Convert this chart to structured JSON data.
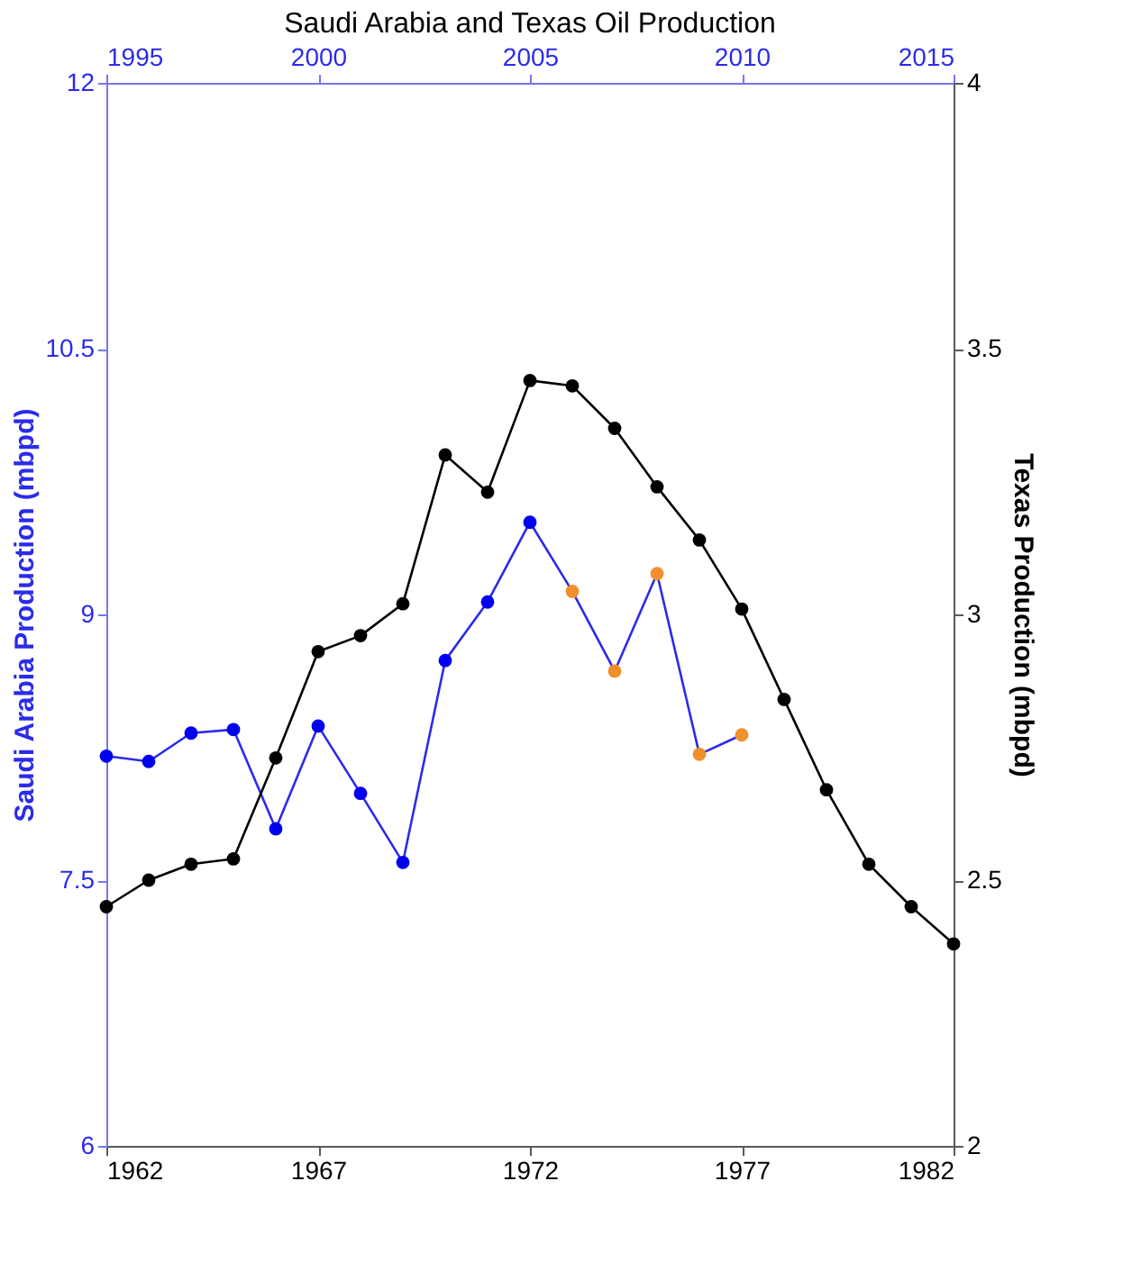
{
  "chart_data": {
    "type": "line",
    "title": "Saudi Arabia and Texas Oil Production",
    "ylabel": "Saudi Arabia Production (mbpd)",
    "y2label": "Texas Production (mbpd)",
    "xlim": [
      1962,
      1982
    ],
    "xticks": [
      1962,
      1967,
      1972,
      1977,
      1982
    ],
    "x2lim": [
      1995,
      2015
    ],
    "x2ticks": [
      1995,
      2000,
      2005,
      2010,
      2015
    ],
    "ylim": [
      6,
      12
    ],
    "yticks": [
      6,
      7.5,
      9,
      10.5,
      12
    ],
    "y2lim": [
      2,
      4
    ],
    "y2ticks": [
      2,
      2.5,
      3,
      3.5,
      4
    ],
    "grid": false,
    "marker": "circle",
    "line_style": "solid",
    "series": [
      {
        "axis": "x2",
        "color": "#2b2bea",
        "x": [
          1995,
          1996,
          1997,
          1998,
          1999,
          2000,
          2001,
          2002,
          2003,
          2004,
          2005,
          2006,
          2007,
          2008,
          2009,
          2010
        ],
        "values": [
          8.2,
          8.17,
          8.33,
          8.35,
          7.79,
          8.37,
          7.99,
          7.6,
          8.74,
          9.07,
          9.52,
          9.13,
          8.68,
          9.23,
          8.21,
          8.32
        ],
        "colors": [
          "#0000f0",
          "#0000f0",
          "#0000f0",
          "#0000f0",
          "#0000f0",
          "#0000f0",
          "#0000f0",
          "#0000f0",
          "#0000f0",
          "#0000f0",
          "#0000f0",
          "#f0902c",
          "#f0902c",
          "#f0902c",
          "#f0902c",
          "#f0902c"
        ]
      },
      {
        "axis": "y2",
        "color": "#000000",
        "x": [
          1962,
          1963,
          1964,
          1965,
          1966,
          1967,
          1968,
          1969,
          1970,
          1971,
          1972,
          1973,
          1974,
          1975,
          1976,
          1977,
          1978,
          1979,
          1980,
          1981,
          1982
        ],
        "values": [
          2.45,
          2.5,
          2.53,
          2.54,
          2.73,
          2.93,
          2.96,
          3.02,
          3.3,
          3.23,
          3.44,
          3.43,
          3.35,
          3.24,
          3.14,
          3.01,
          2.84,
          2.67,
          2.53,
          2.45,
          2.38
        ]
      }
    ]
  }
}
